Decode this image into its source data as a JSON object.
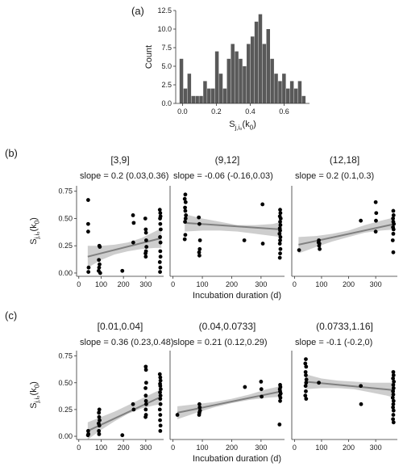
{
  "panel_labels": {
    "a": "(a)",
    "b": "(b)",
    "c": "(c)"
  },
  "colors": {
    "bar": "#595959",
    "point": "#000000",
    "fit_line": "#808080",
    "ribbon": "#bdbdbd",
    "axis": "#333333"
  },
  "chart_data": [
    {
      "id": "a",
      "type": "bar",
      "subtype": "histogram",
      "xlabel": "S_{j,i0}(k0)",
      "ylabel": "Count",
      "xlim": [
        -0.04,
        0.75
      ],
      "ylim": [
        0,
        12.5
      ],
      "xticks": [
        0.0,
        0.2,
        0.4,
        0.6
      ],
      "xtick_labels": [
        "0.0",
        "0.2",
        "0.4",
        "0.6"
      ],
      "yticks": [
        0,
        2.5,
        5,
        7.5,
        10,
        12.5
      ],
      "ytick_labels": [
        "0.0",
        "2.5",
        "5.0",
        "7.5",
        "10.0",
        "12.5"
      ],
      "bin_width": 0.0233,
      "bin_centers": [
        -0.0055,
        0.0178,
        0.0411,
        0.0644,
        0.0877,
        0.111,
        0.1343,
        0.1576,
        0.1809,
        0.2042,
        0.2275,
        0.2508,
        0.2741,
        0.2974,
        0.3207,
        0.344,
        0.3673,
        0.3906,
        0.4139,
        0.4372,
        0.4605,
        0.4838,
        0.5071,
        0.5304,
        0.5537,
        0.577,
        0.6003,
        0.6236,
        0.6469,
        0.6702,
        0.6935,
        0.7168
      ],
      "values": [
        6,
        2,
        4,
        1,
        1,
        1,
        3,
        2,
        2,
        7,
        4,
        2,
        6,
        8,
        7,
        6,
        5,
        8,
        9,
        11,
        12,
        8,
        10,
        6,
        4,
        3,
        4,
        2,
        3,
        2,
        3,
        1
      ]
    },
    {
      "id": "b",
      "type": "scatter",
      "ylabel": "S_{j,i0}(k0)",
      "xlabel": "Incubation duration (d)",
      "xlim": [
        -10,
        380
      ],
      "ylim": [
        -0.03,
        0.8
      ],
      "xticks": [
        0,
        100,
        200,
        300
      ],
      "yticks": [
        0,
        0.25,
        0.5,
        0.75
      ],
      "ytick_labels": [
        "0.00",
        "0.25",
        "0.50",
        "0.75"
      ],
      "facets": [
        {
          "strip": "[3,9]",
          "slope_text": "slope = 0.2 (0.03,0.36)",
          "fit": {
            "x": [
              40,
              370
            ],
            "y": [
              0.15,
              0.32
            ]
          },
          "ribbon": {
            "x": [
              40,
              100,
              160,
              220,
              280,
              340,
              370
            ],
            "lower": [
              0.05,
              0.12,
              0.17,
              0.2,
              0.22,
              0.23,
              0.23
            ],
            "upper": [
              0.25,
              0.25,
              0.26,
              0.28,
              0.32,
              0.38,
              0.41
            ]
          },
          "points": {
            "x": [
              42,
              42,
              42,
              44,
              43,
              92,
              90,
              93,
              91,
              89,
              96,
              94,
              195,
              243,
              246,
              244,
              298,
              300,
              301,
              302,
              303,
              301,
              299,
              300,
              363,
              365,
              366,
              364,
              365,
              367,
              364,
              366,
              365,
              366,
              363,
              365,
              364
            ],
            "y": [
              0.67,
              0.45,
              0.38,
              0.05,
              0.01,
              0.25,
              0.12,
              0.08,
              0.05,
              0.02,
              0.0,
              0.24,
              0.02,
              0.53,
              0.46,
              0.28,
              0.5,
              0.4,
              0.37,
              0.3,
              0.24,
              0.2,
              0.18,
              0.15,
              0.58,
              0.55,
              0.52,
              0.5,
              0.45,
              0.4,
              0.33,
              0.28,
              0.2,
              0.15,
              0.1,
              0.05,
              0.01
            ]
          }
        },
        {
          "strip": "(9,12]",
          "slope_text": "slope = -0.06 (-0.16,0.03)",
          "fit": {
            "x": [
              40,
              370
            ],
            "y": [
              0.46,
              0.4
            ]
          },
          "ribbon": {
            "x": [
              40,
              100,
              160,
              220,
              280,
              340,
              370
            ],
            "lower": [
              0.38,
              0.39,
              0.39,
              0.38,
              0.36,
              0.34,
              0.33
            ],
            "upper": [
              0.54,
              0.5,
              0.47,
              0.44,
              0.44,
              0.45,
              0.47
            ]
          },
          "points": {
            "x": [
              42,
              40,
              43,
              41,
              42,
              44,
              43,
              41,
              42,
              40,
              88,
              90,
              92,
              91,
              89,
              90,
              243,
              305,
              306,
              365,
              366,
              364,
              367,
              365,
              366,
              364,
              365,
              363,
              366,
              365,
              364,
              366,
              365,
              364
            ],
            "y": [
              0.72,
              0.68,
              0.65,
              0.6,
              0.57,
              0.53,
              0.5,
              0.47,
              0.35,
              0.31,
              0.51,
              0.45,
              0.3,
              0.22,
              0.19,
              0.16,
              0.3,
              0.63,
              0.27,
              0.58,
              0.55,
              0.52,
              0.5,
              0.47,
              0.44,
              0.41,
              0.39,
              0.36,
              0.33,
              0.3,
              0.27,
              0.22,
              0.18,
              0.14
            ]
          }
        },
        {
          "strip": "(12,18]",
          "slope_text": "slope = 0.2 (0.1,0.3)",
          "fit": {
            "x": [
              15,
              370
            ],
            "y": [
              0.26,
              0.45
            ]
          },
          "ribbon": {
            "x": [
              15,
              80,
              140,
              200,
              260,
              320,
              370
            ],
            "lower": [
              0.18,
              0.24,
              0.29,
              0.33,
              0.37,
              0.39,
              0.4
            ],
            "upper": [
              0.33,
              0.34,
              0.36,
              0.39,
              0.44,
              0.48,
              0.51
            ]
          },
          "points": {
            "x": [
              17,
              90,
              92,
              91,
              93,
              89,
              245,
              300,
              302,
              301,
              300,
              365,
              366,
              364,
              365,
              367,
              364,
              366,
              365,
              363,
              365
            ],
            "y": [
              0.21,
              0.3,
              0.27,
              0.25,
              0.22,
              0.28,
              0.48,
              0.65,
              0.55,
              0.48,
              0.38,
              0.57,
              0.53,
              0.5,
              0.47,
              0.45,
              0.42,
              0.4,
              0.36,
              0.3,
              0.19
            ]
          }
        }
      ]
    },
    {
      "id": "c",
      "type": "scatter",
      "ylabel": "S_{j,i0}(k0)",
      "xlabel": "Incubation duration (d)",
      "xlim": [
        -10,
        380
      ],
      "ylim": [
        -0.03,
        0.8
      ],
      "xticks": [
        0,
        100,
        200,
        300
      ],
      "yticks": [
        0,
        0.25,
        0.5,
        0.75
      ],
      "ytick_labels": [
        "0.00",
        "0.25",
        "0.50",
        "0.75"
      ],
      "facets": [
        {
          "strip": "[0.01,0.04]",
          "slope_text": "slope = 0.36 (0.23,0.48)",
          "fit": {
            "x": [
              40,
              370
            ],
            "y": [
              0.05,
              0.37
            ]
          },
          "ribbon": {
            "x": [
              40,
              100,
              160,
              220,
              280,
              340,
              370
            ],
            "lower": [
              -0.03,
              0.06,
              0.14,
              0.21,
              0.26,
              0.29,
              0.3
            ],
            "upper": [
              0.13,
              0.18,
              0.23,
              0.29,
              0.35,
              0.41,
              0.44
            ]
          },
          "points": {
            "x": [
              42,
              43,
              41,
              92,
              90,
              91,
              93,
              89,
              92,
              90,
              91,
              195,
              243,
              246,
              300,
              301,
              302,
              299,
              300,
              301,
              302,
              300,
              301,
              299,
              363,
              365,
              366,
              364,
              365,
              367,
              364,
              366,
              365,
              366,
              363,
              365,
              364,
              366,
              365
            ],
            "y": [
              0.05,
              0.02,
              0.01,
              0.25,
              0.22,
              0.18,
              0.15,
              0.12,
              0.1,
              0.05,
              0.02,
              0.01,
              0.3,
              0.25,
              0.65,
              0.62,
              0.5,
              0.45,
              0.38,
              0.33,
              0.3,
              0.25,
              0.2,
              0.18,
              0.58,
              0.55,
              0.52,
              0.49,
              0.47,
              0.44,
              0.41,
              0.38,
              0.35,
              0.3,
              0.25,
              0.2,
              0.15,
              0.1,
              0.05
            ]
          }
        },
        {
          "strip": "(0.04,0.0733]",
          "slope_text": "slope = 0.21 (0.12,0.29)",
          "fit": {
            "x": [
              15,
              370
            ],
            "y": [
              0.22,
              0.42
            ]
          },
          "ribbon": {
            "x": [
              15,
              80,
              140,
              200,
              260,
              320,
              370
            ],
            "lower": [
              0.16,
              0.22,
              0.27,
              0.31,
              0.34,
              0.36,
              0.37
            ],
            "upper": [
              0.28,
              0.3,
              0.32,
              0.35,
              0.39,
              0.44,
              0.47
            ]
          },
          "points": {
            "x": [
              15,
              90,
              91,
              92,
              90,
              89,
              245,
              300,
              301,
              302,
              365,
              366,
              364,
              365,
              367,
              364,
              366,
              365,
              363
            ],
            "y": [
              0.2,
              0.3,
              0.27,
              0.24,
              0.22,
              0.2,
              0.46,
              0.51,
              0.44,
              0.37,
              0.48,
              0.46,
              0.44,
              0.42,
              0.4,
              0.38,
              0.36,
              0.33,
              0.11
            ]
          }
        },
        {
          "strip": "(0.0733,1.16]",
          "slope_text": "slope = -0.1 (-0.2,0)",
          "fit": {
            "x": [
              40,
              370
            ],
            "y": [
              0.51,
              0.43
            ]
          },
          "ribbon": {
            "x": [
              40,
              100,
              160,
              220,
              280,
              340,
              370
            ],
            "lower": [
              0.44,
              0.45,
              0.45,
              0.44,
              0.41,
              0.38,
              0.36
            ],
            "upper": [
              0.58,
              0.54,
              0.52,
              0.51,
              0.5,
              0.5,
              0.5
            ]
          },
          "points": {
            "x": [
              42,
              40,
              43,
              41,
              42,
              44,
              43,
              41,
              42,
              40,
              43,
              90,
              245,
              246,
              365,
              366,
              364,
              367,
              365,
              366,
              364,
              365,
              363,
              366,
              365,
              364,
              366,
              365,
              364,
              366
            ],
            "y": [
              0.72,
              0.68,
              0.65,
              0.6,
              0.57,
              0.53,
              0.5,
              0.47,
              0.42,
              0.38,
              0.35,
              0.5,
              0.47,
              0.3,
              0.6,
              0.57,
              0.54,
              0.51,
              0.48,
              0.45,
              0.42,
              0.39,
              0.36,
              0.33,
              0.3,
              0.27,
              0.24,
              0.2,
              0.16,
              0.13
            ]
          }
        }
      ]
    }
  ]
}
